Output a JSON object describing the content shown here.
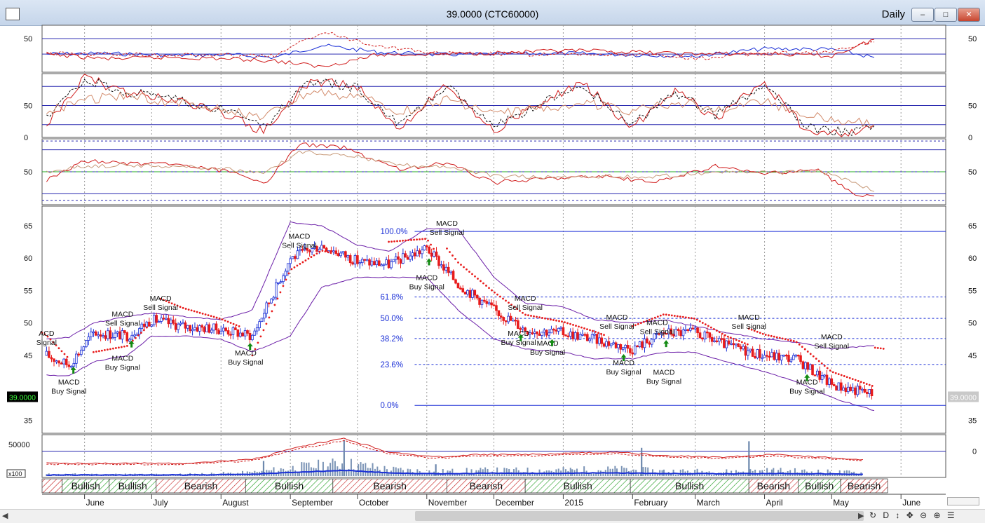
{
  "window": {
    "title": "39.0000 (CTC60000)",
    "period": "Daily",
    "buttons": {
      "minimize": "–",
      "maximize": "□",
      "close": "✕"
    }
  },
  "price_badge": {
    "left": "39.0000",
    "right": "39.0000"
  },
  "volume_scale_label": "x100",
  "colors": {
    "up_candle": "#1a2fd6",
    "down_candle": "#e81b1b",
    "signal_up": "#138a13",
    "sar_dots": "#e81b1b",
    "bollinger": "#6b1ea8",
    "fib_lines": "#1a2fd6",
    "bullish_band": "#1a9a1a",
    "bearish_band": "#c41a1a"
  },
  "icons": {
    "toolbar": [
      "refresh-icon",
      "document-icon",
      "hand-icon",
      "crosshair-icon",
      "zoom-out-icon",
      "zoom-in-icon",
      "list-icon"
    ]
  },
  "toolbar_glyphs": "↻ D ↕ ✥ ⊝ ⊕ ☰",
  "chart_data": [
    {
      "type": "line",
      "panel": "oscillator-1",
      "y_ticks_left": [
        "50"
      ],
      "y_ticks_right": [
        "50"
      ],
      "ylim": [
        0,
        70
      ],
      "hlines": [
        50,
        27
      ],
      "x": [
        "2014-05-15",
        "2014-06-10",
        "2014-07-10",
        "2014-08-05",
        "2014-08-25",
        "2014-09-15",
        "2014-10-10",
        "2014-11-05",
        "2014-12-01",
        "2015-01-05",
        "2015-02-01",
        "2015-03-01",
        "2015-04-01",
        "2015-05-01",
        "2015-05-20"
      ],
      "series": [
        {
          "values": [
            27,
            28,
            25,
            26,
            22,
            40,
            30,
            26,
            27,
            28,
            26,
            24,
            35,
            34,
            22
          ]
        },
        {
          "values": [
            27,
            20,
            22,
            20,
            17,
            8,
            26,
            27,
            29,
            32,
            30,
            27,
            28,
            24,
            49
          ]
        },
        {
          "values": [
            28,
            27,
            26,
            25,
            24,
            60,
            40,
            28,
            27,
            26,
            27,
            20,
            28,
            30,
            45
          ]
        }
      ]
    },
    {
      "type": "line",
      "panel": "stochastic",
      "y_ticks_left": [
        "50",
        "0"
      ],
      "y_ticks_right": [
        "50",
        "0"
      ],
      "ylim": [
        0,
        100
      ],
      "hlines": [
        80,
        50,
        20
      ],
      "x": [
        "2014-05-15",
        "2014-06-01",
        "2014-06-20",
        "2014-07-10",
        "2014-08-01",
        "2014-08-20",
        "2014-09-10",
        "2014-10-01",
        "2014-10-20",
        "2014-11-10",
        "2014-12-01",
        "2014-12-20",
        "2015-01-10",
        "2015-02-01",
        "2015-02-20",
        "2015-03-10",
        "2015-04-01",
        "2015-04-20",
        "2015-05-10",
        "2015-05-20"
      ],
      "series": [
        {
          "values": [
            20,
            95,
            70,
            60,
            40,
            10,
            90,
            80,
            15,
            85,
            10,
            50,
            85,
            15,
            75,
            30,
            85,
            10,
            5,
            20
          ]
        },
        {
          "values": [
            30,
            90,
            72,
            60,
            45,
            15,
            88,
            78,
            20,
            80,
            15,
            50,
            80,
            20,
            72,
            35,
            80,
            15,
            8,
            18
          ]
        },
        {
          "values": [
            40,
            60,
            65,
            55,
            45,
            30,
            70,
            65,
            40,
            60,
            35,
            45,
            55,
            40,
            55,
            45,
            55,
            35,
            25,
            20
          ]
        }
      ]
    },
    {
      "type": "line",
      "panel": "rsi",
      "y_ticks_left": [
        "50"
      ],
      "y_ticks_right": [
        "50"
      ],
      "ylim": [
        20,
        80
      ],
      "hlines": [
        70,
        50,
        30
      ],
      "dashed_hlines": [
        78,
        24
      ],
      "x": [
        "2014-05-15",
        "2014-06-01",
        "2014-06-20",
        "2014-07-15",
        "2014-08-05",
        "2014-08-20",
        "2014-09-05",
        "2014-09-25",
        "2014-10-20",
        "2014-11-10",
        "2014-12-01",
        "2014-12-25",
        "2015-01-20",
        "2015-02-10",
        "2015-03-10",
        "2015-04-01",
        "2015-04-25",
        "2015-05-10",
        "2015-05-20"
      ],
      "series": [
        {
          "values": [
            42,
            60,
            58,
            56,
            50,
            38,
            75,
            72,
            52,
            58,
            40,
            44,
            46,
            40,
            55,
            48,
            52,
            30,
            28
          ]
        },
        {
          "values": [
            50,
            55,
            56,
            55,
            52,
            48,
            68,
            66,
            56,
            55,
            46,
            45,
            46,
            45,
            50,
            49,
            50,
            42,
            32
          ]
        }
      ]
    },
    {
      "type": "candlestick",
      "panel": "price",
      "y_ticks_left": [
        "65",
        "60",
        "55",
        "50",
        "45",
        "35"
      ],
      "y_ticks_right": [
        "65",
        "60",
        "55",
        "50",
        "45",
        "35"
      ],
      "ylim": [
        33,
        68
      ],
      "x": [
        "2014-05-15",
        "2014-05-25",
        "2014-06-05",
        "2014-06-20",
        "2014-07-01",
        "2014-07-15",
        "2014-08-01",
        "2014-08-15",
        "2014-09-01",
        "2014-09-15",
        "2014-10-01",
        "2014-10-15",
        "2014-11-01",
        "2014-11-15",
        "2014-12-01",
        "2014-12-15",
        "2015-01-01",
        "2015-01-15",
        "2015-02-01",
        "2015-02-15",
        "2015-03-01",
        "2015-03-15",
        "2015-04-01",
        "2015-04-15",
        "2015-05-01",
        "2015-05-20"
      ],
      "close": [
        45.0,
        43.5,
        48.5,
        48.0,
        50.5,
        49.5,
        49.0,
        48.0,
        60.0,
        62.0,
        59.5,
        59.0,
        61.5,
        56.0,
        52.0,
        49.0,
        48.5,
        47.5,
        46.0,
        48.5,
        48.5,
        46.5,
        45.0,
        44.5,
        40.5,
        39.0
      ],
      "bollinger_upper": [
        47.5,
        47.8,
        50.0,
        51.0,
        51.5,
        51.0,
        50.5,
        52.0,
        65.5,
        65.0,
        62.0,
        61.0,
        64.5,
        64.5,
        57.0,
        53.0,
        52.5,
        50.5,
        50.0,
        50.5,
        49.5,
        48.5,
        47.5,
        47.0,
        46.0,
        46.5
      ],
      "bollinger_lower": [
        42.0,
        41.8,
        44.0,
        45.0,
        48.0,
        48.0,
        47.5,
        45.5,
        48.0,
        55.5,
        57.0,
        57.0,
        57.0,
        52.0,
        47.5,
        46.0,
        45.5,
        44.5,
        44.5,
        45.5,
        45.5,
        44.0,
        42.5,
        41.0,
        38.5,
        36.5
      ],
      "fibonacci": {
        "levels": [
          {
            "label": "100.0%",
            "value": 64.1
          },
          {
            "label": "61.8%",
            "value": 54.0
          },
          {
            "label": "50.0%",
            "value": 50.7
          },
          {
            "label": "38.2%",
            "value": 47.6
          },
          {
            "label": "23.6%",
            "value": 43.6
          },
          {
            "label": "0.0%",
            "value": 37.3
          }
        ]
      },
      "annotations": [
        {
          "text": [
            "ACD",
            "Signal"
          ],
          "x": "2014-05-15",
          "y": 48.0
        },
        {
          "text": [
            "MACD",
            "Buy Signal"
          ],
          "x": "2014-05-25",
          "y": 40.5
        },
        {
          "text": [
            "MACD",
            "Sell Signal"
          ],
          "x": "2014-06-18",
          "y": 51.0
        },
        {
          "text": [
            "MACD",
            "Buy Signal"
          ],
          "x": "2014-06-18",
          "y": 44.2
        },
        {
          "text": [
            "MACD",
            "Sell Signal"
          ],
          "x": "2014-07-05",
          "y": 53.4
        },
        {
          "text": [
            "MACD",
            "Buy Signal"
          ],
          "x": "2014-08-12",
          "y": 45.0
        },
        {
          "text": [
            "MACD",
            "Sell Signal"
          ],
          "x": "2014-09-05",
          "y": 63.0
        },
        {
          "text": [
            "MACD",
            "Buy Signal"
          ],
          "x": "2014-11-01",
          "y": 56.6
        },
        {
          "text": [
            "MACD",
            "Sell Signal"
          ],
          "x": "2014-11-10",
          "y": 65.0
        },
        {
          "text": [
            "MACD",
            "Sell Signal"
          ],
          "x": "2014-12-15",
          "y": 53.4
        },
        {
          "text": [
            "MACD",
            "Buy Signal"
          ],
          "x": "2014-12-12",
          "y": 48.0
        },
        {
          "text": [
            "MACD",
            "Buy Signal"
          ],
          "x": "2014-12-25",
          "y": 46.5
        },
        {
          "text": [
            "MACD",
            "Sell Signal"
          ],
          "x": "2015-01-25",
          "y": 50.5
        },
        {
          "text": [
            "MACD",
            "Buy Signal"
          ],
          "x": "2015-01-28",
          "y": 43.5
        },
        {
          "text": [
            "MACD",
            "Sell Signal"
          ],
          "x": "2015-02-12",
          "y": 49.7
        },
        {
          "text": [
            "MACD",
            "Buy Signal"
          ],
          "x": "2015-02-15",
          "y": 42.0
        },
        {
          "text": [
            "MACD",
            "Sell Signal"
          ],
          "x": "2015-03-25",
          "y": 50.5
        },
        {
          "text": [
            "MACD",
            "Buy Signal"
          ],
          "x": "2015-04-20",
          "y": 40.5
        },
        {
          "text": [
            "MACD",
            "Sell Signal"
          ],
          "x": "2015-05-01",
          "y": 47.5
        }
      ]
    },
    {
      "type": "bar",
      "panel": "volume",
      "y_ticks_left": [
        "50000"
      ],
      "y_ticks_right": [
        "0"
      ],
      "ylim": [
        0,
        65000
      ],
      "x": [
        "2014-05-15",
        "2014-06-15",
        "2014-07-15",
        "2014-08-15",
        "2014-09-05",
        "2014-09-25",
        "2014-10-15",
        "2014-11-05",
        "2014-11-25",
        "2014-12-15",
        "2015-01-05",
        "2015-01-25",
        "2015-02-15",
        "2015-03-15",
        "2015-04-05",
        "2015-04-25",
        "2015-05-15"
      ],
      "values": [
        5000,
        5000,
        5000,
        8000,
        18000,
        25000,
        14000,
        10000,
        12000,
        12000,
        13000,
        14000,
        11000,
        10000,
        12000,
        10000,
        8000
      ],
      "spikes": [
        {
          "x": "2014-08-20",
          "value": 25000
        },
        {
          "x": "2014-09-25",
          "value": 57000
        },
        {
          "x": "2014-11-05",
          "value": 20000
        },
        {
          "x": "2015-02-05",
          "value": 45000
        },
        {
          "x": "2015-03-25",
          "value": 55000
        }
      ]
    },
    {
      "type": "table",
      "panel": "trend-bands",
      "bands": [
        {
          "label": "",
          "state": "bearish",
          "from": "2014-05-13",
          "to": "2014-05-22"
        },
        {
          "label": "Bullish",
          "state": "bullish",
          "from": "2014-05-22",
          "to": "2014-06-12"
        },
        {
          "label": "Bullish",
          "state": "bullish",
          "from": "2014-06-12",
          "to": "2014-07-03"
        },
        {
          "label": "Bearish",
          "state": "bearish",
          "from": "2014-07-03",
          "to": "2014-08-12"
        },
        {
          "label": "Bullish",
          "state": "bullish",
          "from": "2014-08-12",
          "to": "2014-09-20"
        },
        {
          "label": "Bearish",
          "state": "bearish",
          "from": "2014-09-20",
          "to": "2014-11-10"
        },
        {
          "label": "Bearish",
          "state": "bearish",
          "from": "2014-11-10",
          "to": "2014-12-15"
        },
        {
          "label": "Bullish",
          "state": "bullish",
          "from": "2014-12-15",
          "to": "2015-01-31"
        },
        {
          "label": "Bullish",
          "state": "bullish",
          "from": "2015-01-31",
          "to": "2015-03-25"
        },
        {
          "label": "Bearish",
          "state": "bearish",
          "from": "2015-03-25",
          "to": "2015-04-16"
        },
        {
          "label": "Bullish",
          "state": "bullish",
          "from": "2015-04-16",
          "to": "2015-05-05"
        },
        {
          "label": "Bearish",
          "state": "bearish",
          "from": "2015-05-05",
          "to": "2015-05-26"
        }
      ]
    }
  ],
  "x_axis": {
    "ticks": [
      {
        "label": "June",
        "date": "2014-06-01"
      },
      {
        "label": "July",
        "date": "2014-07-01"
      },
      {
        "label": "August",
        "date": "2014-08-01"
      },
      {
        "label": "September",
        "date": "2014-09-01"
      },
      {
        "label": "October",
        "date": "2014-10-01"
      },
      {
        "label": "November",
        "date": "2014-11-01"
      },
      {
        "label": "December",
        "date": "2014-12-01"
      },
      {
        "label": "2015",
        "date": "2015-01-01"
      },
      {
        "label": "February",
        "date": "2015-02-01"
      },
      {
        "label": "March",
        "date": "2015-03-01"
      },
      {
        "label": "April",
        "date": "2015-04-01"
      },
      {
        "label": "May",
        "date": "2015-05-01"
      },
      {
        "label": "June",
        "date": "2015-06-01"
      }
    ]
  }
}
